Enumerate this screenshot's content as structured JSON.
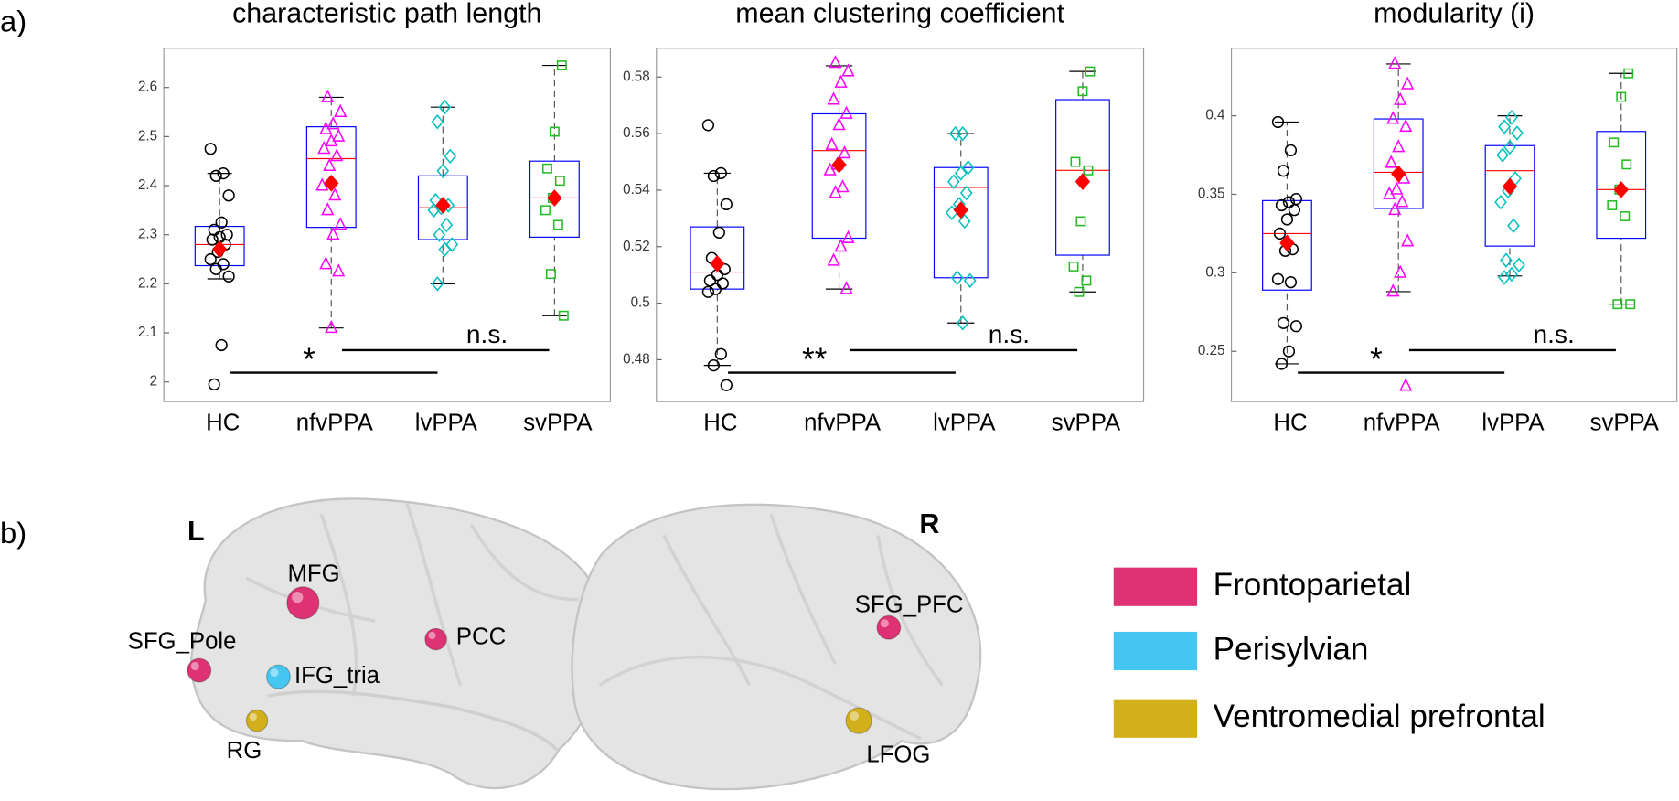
{
  "panel_labels": [
    "a)",
    "b)"
  ],
  "chart_data": [
    {
      "type": "box",
      "title": "characteristic path length",
      "categories": [
        "HC",
        "nfvPPA",
        "lvPPA",
        "svPPA"
      ],
      "ylim": [
        1.96,
        2.68
      ],
      "yticks": [
        2,
        2.1,
        2.2,
        2.3,
        2.4,
        2.5,
        2.6
      ],
      "box_color": "#0000ff",
      "median_color": "#ff0000",
      "mean_color": "#ff0000",
      "boxes": [
        {
          "color": "#000000",
          "marker": "circle",
          "whisker_low": 2.21,
          "q1": 2.237,
          "median": 2.28,
          "q3": 2.317,
          "whisker_high": 2.425,
          "mean": 2.27,
          "points": [
            2.475,
            2.425,
            2.42,
            2.38,
            2.325,
            2.31,
            2.3,
            2.295,
            2.29,
            2.28,
            2.265,
            2.25,
            2.24,
            2.23,
            2.215,
            2.075,
            1.995
          ]
        },
        {
          "color": "#ff00ff",
          "marker": "triangle",
          "whisker_low": 2.11,
          "q1": 2.315,
          "median": 2.455,
          "q3": 2.52,
          "whisker_high": 2.58,
          "mean": 2.405,
          "points": [
            2.58,
            2.55,
            2.525,
            2.515,
            2.5,
            2.49,
            2.475,
            2.46,
            2.44,
            2.4,
            2.38,
            2.35,
            2.32,
            2.3,
            2.24,
            2.225,
            2.11
          ]
        },
        {
          "color": "#00c0c0",
          "marker": "diamond",
          "whisker_low": 2.2,
          "q1": 2.29,
          "median": 2.355,
          "q3": 2.42,
          "whisker_high": 2.56,
          "mean": 2.36,
          "points": [
            2.56,
            2.53,
            2.46,
            2.43,
            2.37,
            2.36,
            2.355,
            2.35,
            2.32,
            2.3,
            2.28,
            2.27,
            2.2
          ]
        },
        {
          "color": "#22bb22",
          "marker": "square",
          "whisker_low": 2.135,
          "q1": 2.295,
          "median": 2.375,
          "q3": 2.45,
          "whisker_high": 2.645,
          "mean": 2.375,
          "points": [
            2.645,
            2.51,
            2.435,
            2.41,
            2.375,
            2.35,
            2.32,
            2.22,
            2.135
          ]
        }
      ],
      "annotations": [
        {
          "text": "*",
          "span": [
            "HC",
            "lvPPA"
          ]
        },
        {
          "text": "n.s.",
          "span": [
            "nfvPPA",
            "svPPA"
          ]
        }
      ]
    },
    {
      "type": "box",
      "title": "mean clustering coefficient",
      "categories": [
        "HC",
        "nfvPPA",
        "lvPPA",
        "svPPA"
      ],
      "ylim": [
        0.4652,
        0.5902
      ],
      "yticks": [
        0.48,
        0.5,
        0.52,
        0.54,
        0.56,
        0.58
      ],
      "box_color": "#0000ff",
      "median_color": "#ff0000",
      "mean_color": "#ff0000",
      "boxes": [
        {
          "color": "#000000",
          "marker": "circle",
          "whisker_low": 0.478,
          "q1": 0.505,
          "median": 0.511,
          "q3": 0.527,
          "whisker_high": 0.546,
          "mean": 0.514,
          "points": [
            0.563,
            0.546,
            0.545,
            0.535,
            0.525,
            0.516,
            0.512,
            0.51,
            0.508,
            0.507,
            0.505,
            0.504,
            0.482,
            0.478,
            0.471
          ]
        },
        {
          "color": "#ff00ff",
          "marker": "triangle",
          "whisker_low": 0.505,
          "q1": 0.523,
          "median": 0.554,
          "q3": 0.567,
          "whisker_high": 0.584,
          "mean": 0.549,
          "points": [
            0.585,
            0.582,
            0.578,
            0.572,
            0.567,
            0.563,
            0.556,
            0.553,
            0.549,
            0.547,
            0.541,
            0.539,
            0.523,
            0.52,
            0.515,
            0.505
          ]
        },
        {
          "color": "#00c0c0",
          "marker": "diamond",
          "whisker_low": 0.493,
          "q1": 0.509,
          "median": 0.541,
          "q3": 0.548,
          "whisker_high": 0.56,
          "mean": 0.533,
          "points": [
            0.56,
            0.56,
            0.548,
            0.546,
            0.543,
            0.539,
            0.535,
            0.532,
            0.529,
            0.509,
            0.508,
            0.493
          ]
        },
        {
          "color": "#22bb22",
          "marker": "square",
          "whisker_low": 0.504,
          "q1": 0.517,
          "median": 0.547,
          "q3": 0.572,
          "whisker_high": 0.582,
          "mean": 0.543,
          "points": [
            0.582,
            0.575,
            0.55,
            0.547,
            0.529,
            0.513,
            0.508,
            0.504
          ]
        }
      ],
      "annotations": [
        {
          "text": "**",
          "span": [
            "HC",
            "lvPPA"
          ]
        },
        {
          "text": "n.s.",
          "span": [
            "nfvPPA",
            "svPPA"
          ]
        }
      ]
    },
    {
      "type": "box",
      "title": "modularity (i)",
      "categories": [
        "HC",
        "nfvPPA",
        "lvPPA",
        "svPPA"
      ],
      "ylim": [
        0.218,
        0.443
      ],
      "yticks": [
        0.25,
        0.3,
        0.35,
        0.4
      ],
      "box_color": "#0000ff",
      "median_color": "#ff0000",
      "mean_color": "#ff0000",
      "boxes": [
        {
          "color": "#000000",
          "marker": "circle",
          "whisker_low": 0.242,
          "q1": 0.289,
          "median": 0.325,
          "q3": 0.346,
          "whisker_high": 0.396,
          "mean": 0.319,
          "points": [
            0.396,
            0.378,
            0.365,
            0.347,
            0.345,
            0.343,
            0.34,
            0.334,
            0.325,
            0.315,
            0.314,
            0.296,
            0.294,
            0.268,
            0.266,
            0.25,
            0.242
          ]
        },
        {
          "color": "#ff00ff",
          "marker": "triangle",
          "whisker_low": 0.288,
          "q1": 0.341,
          "median": 0.364,
          "q3": 0.398,
          "whisker_high": 0.433,
          "mean": 0.363,
          "points": [
            0.433,
            0.42,
            0.41,
            0.398,
            0.393,
            0.38,
            0.37,
            0.36,
            0.353,
            0.35,
            0.345,
            0.34,
            0.32,
            0.3,
            0.288,
            0.228
          ]
        },
        {
          "color": "#00c0c0",
          "marker": "diamond",
          "whisker_low": 0.298,
          "q1": 0.317,
          "median": 0.365,
          "q3": 0.381,
          "whisker_high": 0.4,
          "mean": 0.355,
          "points": [
            0.399,
            0.393,
            0.389,
            0.38,
            0.375,
            0.36,
            0.352,
            0.345,
            0.33,
            0.308,
            0.305,
            0.299,
            0.297
          ]
        },
        {
          "color": "#22bb22",
          "marker": "square",
          "whisker_low": 0.28,
          "q1": 0.322,
          "median": 0.353,
          "q3": 0.39,
          "whisker_high": 0.427,
          "mean": 0.353,
          "points": [
            0.427,
            0.412,
            0.383,
            0.369,
            0.353,
            0.343,
            0.336,
            0.28,
            0.28
          ]
        }
      ],
      "annotations": [
        {
          "text": "*",
          "span": [
            "HC",
            "lvPPA"
          ]
        },
        {
          "text": "n.s.",
          "span": [
            "nfvPPA",
            "svPPA"
          ]
        }
      ]
    }
  ],
  "brain": {
    "left_label": "L",
    "right_label": "R",
    "nodes": [
      {
        "label": "MFG",
        "network": "Frontoparietal"
      },
      {
        "label": "SFG_Pole",
        "network": "Frontoparietal"
      },
      {
        "label": "IFG_tria",
        "network": "Perisylvian"
      },
      {
        "label": "PCC",
        "network": "Frontoparietal"
      },
      {
        "label": "RG",
        "network": "Ventromedial prefrontal"
      },
      {
        "label": "SFG_PFC",
        "network": "Frontoparietal"
      },
      {
        "label": "LFOG",
        "network": "Ventromedial prefrontal"
      }
    ],
    "legend": [
      {
        "name": "Frontoparietal",
        "color": "#de3274"
      },
      {
        "name": "Perisylvian",
        "color": "#44c6f0"
      },
      {
        "name": "Ventromedial prefrontal",
        "color": "#d2b01c"
      }
    ]
  }
}
